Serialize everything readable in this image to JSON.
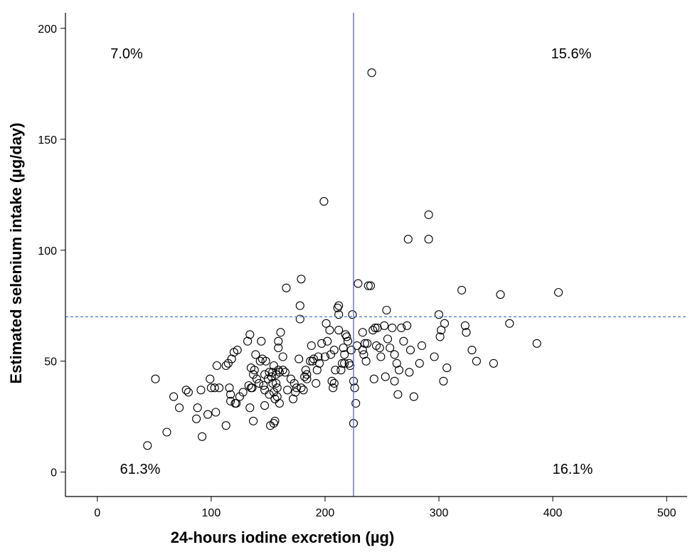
{
  "chart_data": {
    "type": "scatter",
    "xlabel": "24-hours iodine excretion (µg)",
    "ylabel": "Estimated selenium intake (µg/day)",
    "xlim": [
      -28,
      518
    ],
    "ylim": [
      -11,
      207
    ],
    "x_ticks": [
      0,
      100,
      200,
      300,
      400,
      500
    ],
    "y_ticks": [
      0,
      50,
      100,
      150,
      200
    ],
    "x_tick_labels": [
      "0",
      "100",
      "200",
      "300",
      "400",
      "500"
    ],
    "y_tick_labels": [
      "0",
      "50",
      "100",
      "150",
      "200"
    ],
    "grid": false,
    "reference_lines": {
      "vertical": {
        "x": 225,
        "style": "solid",
        "color": "#5b63c9"
      },
      "horizontal": {
        "y": 70,
        "style": "dashed",
        "color": "#5b7fd6"
      }
    },
    "annotations": [
      {
        "text": "7.0%",
        "quadrant": "top-left"
      },
      {
        "text": "15.6%",
        "quadrant": "top-right"
      },
      {
        "text": "61.3%",
        "quadrant": "bottom-left"
      },
      {
        "text": "16.1%",
        "quadrant": "bottom-right"
      }
    ],
    "marker": "open-circle",
    "points": [
      [
        44,
        12
      ],
      [
        51,
        42
      ],
      [
        61,
        18
      ],
      [
        67,
        34
      ],
      [
        72,
        29
      ],
      [
        78,
        37
      ],
      [
        80,
        36
      ],
      [
        87,
        24
      ],
      [
        88,
        29
      ],
      [
        91,
        37
      ],
      [
        92,
        16
      ],
      [
        97,
        26
      ],
      [
        99,
        42
      ],
      [
        100,
        38
      ],
      [
        103,
        38
      ],
      [
        104,
        27
      ],
      [
        105,
        48
      ],
      [
        107,
        38
      ],
      [
        113,
        21
      ],
      [
        113,
        48
      ],
      [
        115,
        49
      ],
      [
        116,
        38
      ],
      [
        117,
        35
      ],
      [
        117,
        32
      ],
      [
        118,
        51
      ],
      [
        120,
        54
      ],
      [
        121,
        31
      ],
      [
        122,
        31
      ],
      [
        123,
        55
      ],
      [
        125,
        34
      ],
      [
        128,
        36
      ],
      [
        132,
        59
      ],
      [
        133,
        39
      ],
      [
        134,
        29
      ],
      [
        134,
        62
      ],
      [
        135,
        47
      ],
      [
        135,
        38
      ],
      [
        136,
        38
      ],
      [
        137,
        23
      ],
      [
        137,
        44
      ],
      [
        138,
        46
      ],
      [
        139,
        53
      ],
      [
        140,
        42
      ],
      [
        142,
        40
      ],
      [
        143,
        50
      ],
      [
        144,
        59
      ],
      [
        145,
        51
      ],
      [
        146,
        39
      ],
      [
        147,
        44
      ],
      [
        147,
        37
      ],
      [
        147,
        30
      ],
      [
        148,
        50
      ],
      [
        150,
        42
      ],
      [
        151,
        45
      ],
      [
        151,
        35
      ],
      [
        152,
        21
      ],
      [
        153,
        43
      ],
      [
        154,
        40
      ],
      [
        154,
        45
      ],
      [
        155,
        22
      ],
      [
        155,
        36
      ],
      [
        155,
        48
      ],
      [
        156,
        33
      ],
      [
        156,
        23
      ],
      [
        157,
        44
      ],
      [
        157,
        40
      ],
      [
        158,
        38
      ],
      [
        158,
        34
      ],
      [
        159,
        59
      ],
      [
        159,
        56
      ],
      [
        159,
        46
      ],
      [
        160,
        45
      ],
      [
        160,
        31
      ],
      [
        161,
        63
      ],
      [
        163,
        46
      ],
      [
        163,
        52
      ],
      [
        165,
        45
      ],
      [
        166,
        83
      ],
      [
        167,
        37
      ],
      [
        170,
        42
      ],
      [
        172,
        33
      ],
      [
        173,
        40
      ],
      [
        174,
        36
      ],
      [
        175,
        38
      ],
      [
        177,
        51
      ],
      [
        178,
        75
      ],
      [
        178,
        69
      ],
      [
        179,
        87
      ],
      [
        179,
        38
      ],
      [
        181,
        37
      ],
      [
        182,
        43
      ],
      [
        183,
        46
      ],
      [
        184,
        42
      ],
      [
        184,
        44
      ],
      [
        187,
        50
      ],
      [
        188,
        57
      ],
      [
        189,
        50
      ],
      [
        190,
        51
      ],
      [
        192,
        40
      ],
      [
        193,
        46
      ],
      [
        194,
        52
      ],
      [
        195,
        49
      ],
      [
        197,
        58
      ],
      [
        199,
        122
      ],
      [
        200,
        52
      ],
      [
        201,
        67
      ],
      [
        202,
        59
      ],
      [
        204,
        64
      ],
      [
        205,
        53
      ],
      [
        206,
        41
      ],
      [
        207,
        38
      ],
      [
        208,
        40
      ],
      [
        208,
        55
      ],
      [
        209,
        46
      ],
      [
        211,
        74
      ],
      [
        212,
        75
      ],
      [
        212,
        71
      ],
      [
        212,
        64
      ],
      [
        214,
        46
      ],
      [
        215,
        49
      ],
      [
        216,
        56
      ],
      [
        217,
        53
      ],
      [
        217,
        49
      ],
      [
        218,
        62
      ],
      [
        219,
        61
      ],
      [
        220,
        59
      ],
      [
        221,
        49
      ],
      [
        222,
        48
      ],
      [
        223,
        55
      ],
      [
        224,
        71
      ],
      [
        225,
        41
      ],
      [
        225,
        22
      ],
      [
        226,
        38
      ],
      [
        227,
        31
      ],
      [
        228,
        57
      ],
      [
        229,
        85
      ],
      [
        233,
        55
      ],
      [
        233,
        63
      ],
      [
        234,
        53
      ],
      [
        235,
        58
      ],
      [
        236,
        50
      ],
      [
        237,
        58
      ],
      [
        238,
        84
      ],
      [
        240,
        84
      ],
      [
        241,
        180
      ],
      [
        242,
        64
      ],
      [
        243,
        42
      ],
      [
        244,
        65
      ],
      [
        245,
        57
      ],
      [
        246,
        65
      ],
      [
        248,
        56
      ],
      [
        249,
        52
      ],
      [
        252,
        66
      ],
      [
        253,
        43
      ],
      [
        254,
        73
      ],
      [
        255,
        60
      ],
      [
        257,
        56
      ],
      [
        259,
        65
      ],
      [
        261,
        53
      ],
      [
        261,
        41
      ],
      [
        263,
        49
      ],
      [
        264,
        35
      ],
      [
        265,
        46
      ],
      [
        267,
        65
      ],
      [
        269,
        59
      ],
      [
        272,
        66
      ],
      [
        273,
        105
      ],
      [
        274,
        45
      ],
      [
        275,
        55
      ],
      [
        278,
        34
      ],
      [
        283,
        49
      ],
      [
        285,
        57
      ],
      [
        291,
        116
      ],
      [
        291,
        105
      ],
      [
        296,
        52
      ],
      [
        300,
        71
      ],
      [
        301,
        61
      ],
      [
        302,
        64
      ],
      [
        304,
        41
      ],
      [
        305,
        67
      ],
      [
        307,
        47
      ],
      [
        320,
        82
      ],
      [
        323,
        66
      ],
      [
        324,
        63
      ],
      [
        329,
        55
      ],
      [
        333,
        50
      ],
      [
        348,
        49
      ],
      [
        354,
        80
      ],
      [
        362,
        67
      ],
      [
        386,
        58
      ],
      [
        405,
        81
      ]
    ]
  }
}
